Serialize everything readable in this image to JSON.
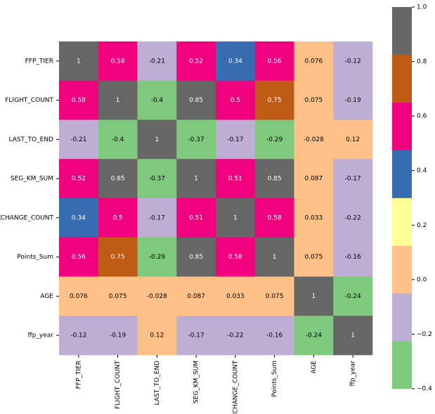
{
  "chart_data": {
    "type": "heatmap",
    "x_categories": [
      "FFP_TIER",
      "FLIGHT_COUNT",
      "LAST_TO_END",
      "SEG_KM_SUM",
      "EXCHANGE_COUNT",
      "Points_Sum",
      "AGE",
      "ffp_year"
    ],
    "y_categories": [
      "FFP_TIER",
      "FLIGHT_COUNT",
      "LAST_TO_END",
      "SEG_KM_SUM",
      "EXCHANGE_COUNT",
      "Points_Sum",
      "AGE",
      "ffp_year"
    ],
    "values": [
      [
        1,
        0.58,
        -0.21,
        0.52,
        0.34,
        0.56,
        0.076,
        -0.12
      ],
      [
        0.58,
        1,
        -0.4,
        0.85,
        0.5,
        0.75,
        0.075,
        -0.19
      ],
      [
        -0.21,
        -0.4,
        1,
        -0.37,
        -0.17,
        -0.29,
        -0.028,
        0.12
      ],
      [
        0.52,
        0.85,
        -0.37,
        1,
        0.51,
        0.85,
        0.087,
        -0.17
      ],
      [
        0.34,
        0.5,
        -0.17,
        0.51,
        1,
        0.58,
        0.033,
        -0.22
      ],
      [
        0.56,
        0.75,
        -0.29,
        0.85,
        0.58,
        1,
        0.075,
        -0.16
      ],
      [
        0.076,
        0.075,
        -0.028,
        0.087,
        0.033,
        0.075,
        1,
        -0.24
      ],
      [
        -0.12,
        -0.19,
        0.12,
        -0.17,
        -0.22,
        -0.16,
        -0.24,
        1
      ]
    ],
    "colors": [
      "#7fc97f",
      "#beaed4",
      "#fdc086",
      "#ffff99",
      "#386cb0",
      "#f0027f",
      "#bf5b17",
      "#666666"
    ],
    "clim": [
      -0.4,
      1.0
    ],
    "cticks": [
      {
        "value": -0.4,
        "label": "−0.4"
      },
      {
        "value": -0.2,
        "label": "−0.2"
      },
      {
        "value": 0.0,
        "label": "0.0"
      },
      0.2,
      0.4,
      0.6,
      0.8,
      {
        "value": 1.0,
        "label": "1.0"
      }
    ]
  }
}
